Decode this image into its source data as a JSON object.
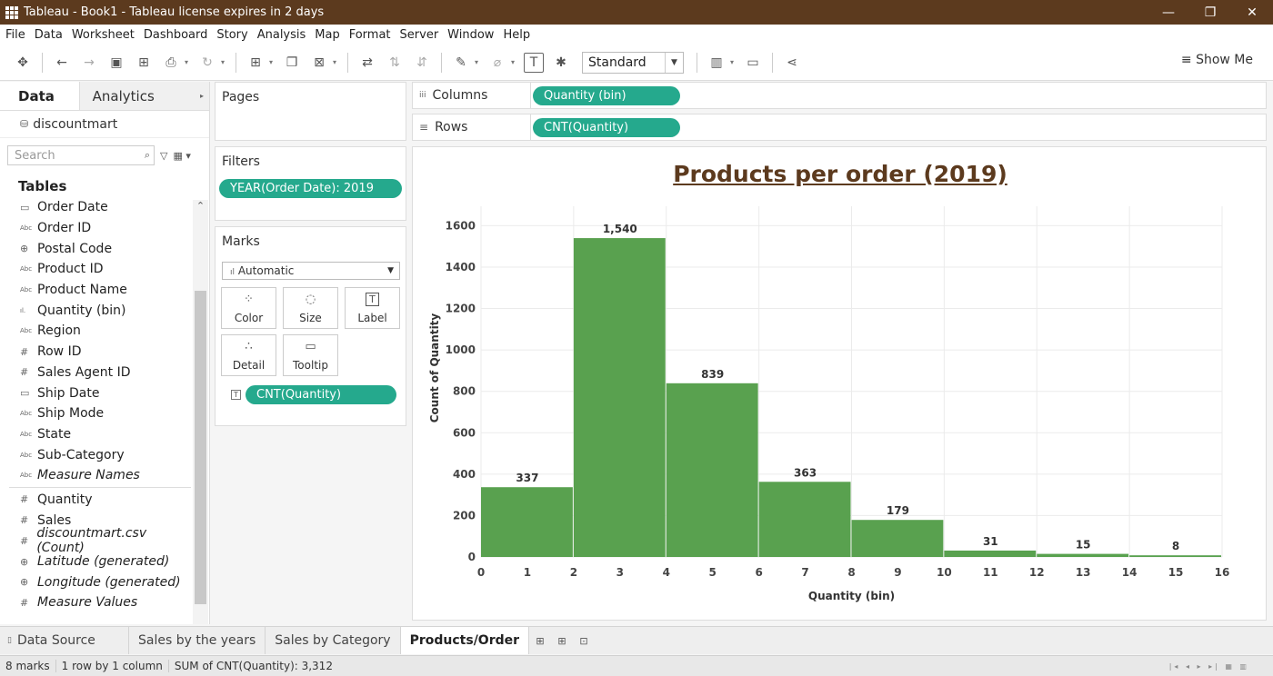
{
  "window": {
    "title": "Tableau - Book1 - Tableau license expires in 2 days",
    "minimize": "—",
    "restore": "❐",
    "close": "✕"
  },
  "menu": [
    "File",
    "Data",
    "Worksheet",
    "Dashboard",
    "Story",
    "Analysis",
    "Map",
    "Format",
    "Server",
    "Window",
    "Help"
  ],
  "toolbar": {
    "fit_value": "Standard",
    "show_me": "Show Me",
    "show_me_icon": "≡"
  },
  "data_pane": {
    "tab_data": "Data",
    "tab_analytics": "Analytics",
    "tab_analytics_icon": "▸",
    "datasource": "discountmart",
    "search_placeholder": "Search",
    "tables_header": "Tables",
    "dimensions": [
      {
        "type": "date",
        "icon": "▭",
        "name": "Order Date",
        "italic": false
      },
      {
        "type": "text",
        "icon": "Abc",
        "name": "Order ID",
        "italic": false
      },
      {
        "type": "geo",
        "icon": "⊕",
        "name": "Postal Code",
        "italic": false
      },
      {
        "type": "text",
        "icon": "Abc",
        "name": "Product ID",
        "italic": false
      },
      {
        "type": "text",
        "icon": "Abc",
        "name": "Product Name",
        "italic": false
      },
      {
        "type": "bin",
        "icon": "ıl.",
        "name": "Quantity (bin)",
        "italic": false
      },
      {
        "type": "text",
        "icon": "Abc",
        "name": "Region",
        "italic": false
      },
      {
        "type": "number",
        "icon": "#",
        "name": "Row ID",
        "italic": false
      },
      {
        "type": "number",
        "icon": "#",
        "name": "Sales Agent ID",
        "italic": false
      },
      {
        "type": "date",
        "icon": "▭",
        "name": "Ship Date",
        "italic": false
      },
      {
        "type": "text",
        "icon": "Abc",
        "name": "Ship Mode",
        "italic": false
      },
      {
        "type": "text",
        "icon": "Abc",
        "name": "State",
        "italic": false
      },
      {
        "type": "text",
        "icon": "Abc",
        "name": "Sub-Category",
        "italic": false
      },
      {
        "type": "text",
        "icon": "Abc",
        "name": "Measure Names",
        "italic": true
      }
    ],
    "measures": [
      {
        "type": "number",
        "icon": "#",
        "name": "Quantity",
        "italic": false
      },
      {
        "type": "number",
        "icon": "#",
        "name": "Sales",
        "italic": false
      },
      {
        "type": "number",
        "icon": "#",
        "name": "discountmart.csv (Count)",
        "italic": true
      },
      {
        "type": "geo",
        "icon": "⊕",
        "name": "Latitude (generated)",
        "italic": true
      },
      {
        "type": "geo",
        "icon": "⊕",
        "name": "Longitude (generated)",
        "italic": true
      },
      {
        "type": "number",
        "icon": "#",
        "name": "Measure Values",
        "italic": true
      }
    ]
  },
  "cards": {
    "pages_title": "Pages",
    "filters_title": "Filters",
    "filter_pill": "YEAR(Order Date): 2019",
    "marks_title": "Marks",
    "marks_type": "Automatic",
    "marks_type_icon": "ıl",
    "mark_buttons": {
      "color": {
        "label": "Color",
        "icon": "⁘"
      },
      "size": {
        "label": "Size",
        "icon": "◌"
      },
      "label": {
        "label": "Label",
        "icon": "T"
      },
      "detail": {
        "label": "Detail",
        "icon": "∴"
      },
      "tooltip": {
        "label": "Tooltip",
        "icon": "▭"
      }
    },
    "label_pill": "CNT(Quantity)",
    "label_pill_icon": "T"
  },
  "shelves": {
    "columns_label": "Columns",
    "columns_icon": "iii",
    "columns_pill": "Quantity (bin)",
    "rows_label": "Rows",
    "rows_icon": "≡",
    "rows_pill": "CNT(Quantity)"
  },
  "colors": {
    "accent_pill": "#25a98d",
    "bar": "#59a14f",
    "title_brown": "#5c3a1e"
  },
  "chart_data": {
    "type": "bar",
    "title": "Products per order (2019)",
    "xlabel": "Quantity (bin)",
    "ylabel": "Count of Quantity",
    "bins": [
      {
        "start": 0,
        "end": 2,
        "value": 337,
        "label": "337"
      },
      {
        "start": 2,
        "end": 4,
        "value": 1540,
        "label": "1,540"
      },
      {
        "start": 4,
        "end": 6,
        "value": 839,
        "label": "839"
      },
      {
        "start": 6,
        "end": 8,
        "value": 363,
        "label": "363"
      },
      {
        "start": 8,
        "end": 10,
        "value": 179,
        "label": "179"
      },
      {
        "start": 10,
        "end": 12,
        "value": 31,
        "label": "31"
      },
      {
        "start": 12,
        "end": 14,
        "value": 15,
        "label": "15"
      },
      {
        "start": 14,
        "end": 16,
        "value": 8,
        "label": "8"
      }
    ],
    "x_ticks": [
      0,
      1,
      2,
      3,
      4,
      5,
      6,
      7,
      8,
      9,
      10,
      11,
      12,
      13,
      14,
      15,
      16
    ],
    "y_ticks": [
      0,
      200,
      400,
      600,
      800,
      1000,
      1200,
      1400,
      1600
    ],
    "xlim": [
      0,
      16
    ],
    "ylim": [
      0,
      1650
    ],
    "grid": true
  },
  "sheet_tabs": {
    "data_source": "Data Source",
    "data_source_icon": "▯",
    "tabs": [
      "Sales by the years",
      "Sales by Category",
      "Products/Order"
    ],
    "active": "Products/Order"
  },
  "status": {
    "marks": "8 marks",
    "layout": "1 row by 1 column",
    "sum": "SUM of CNT(Quantity): 3,312"
  }
}
